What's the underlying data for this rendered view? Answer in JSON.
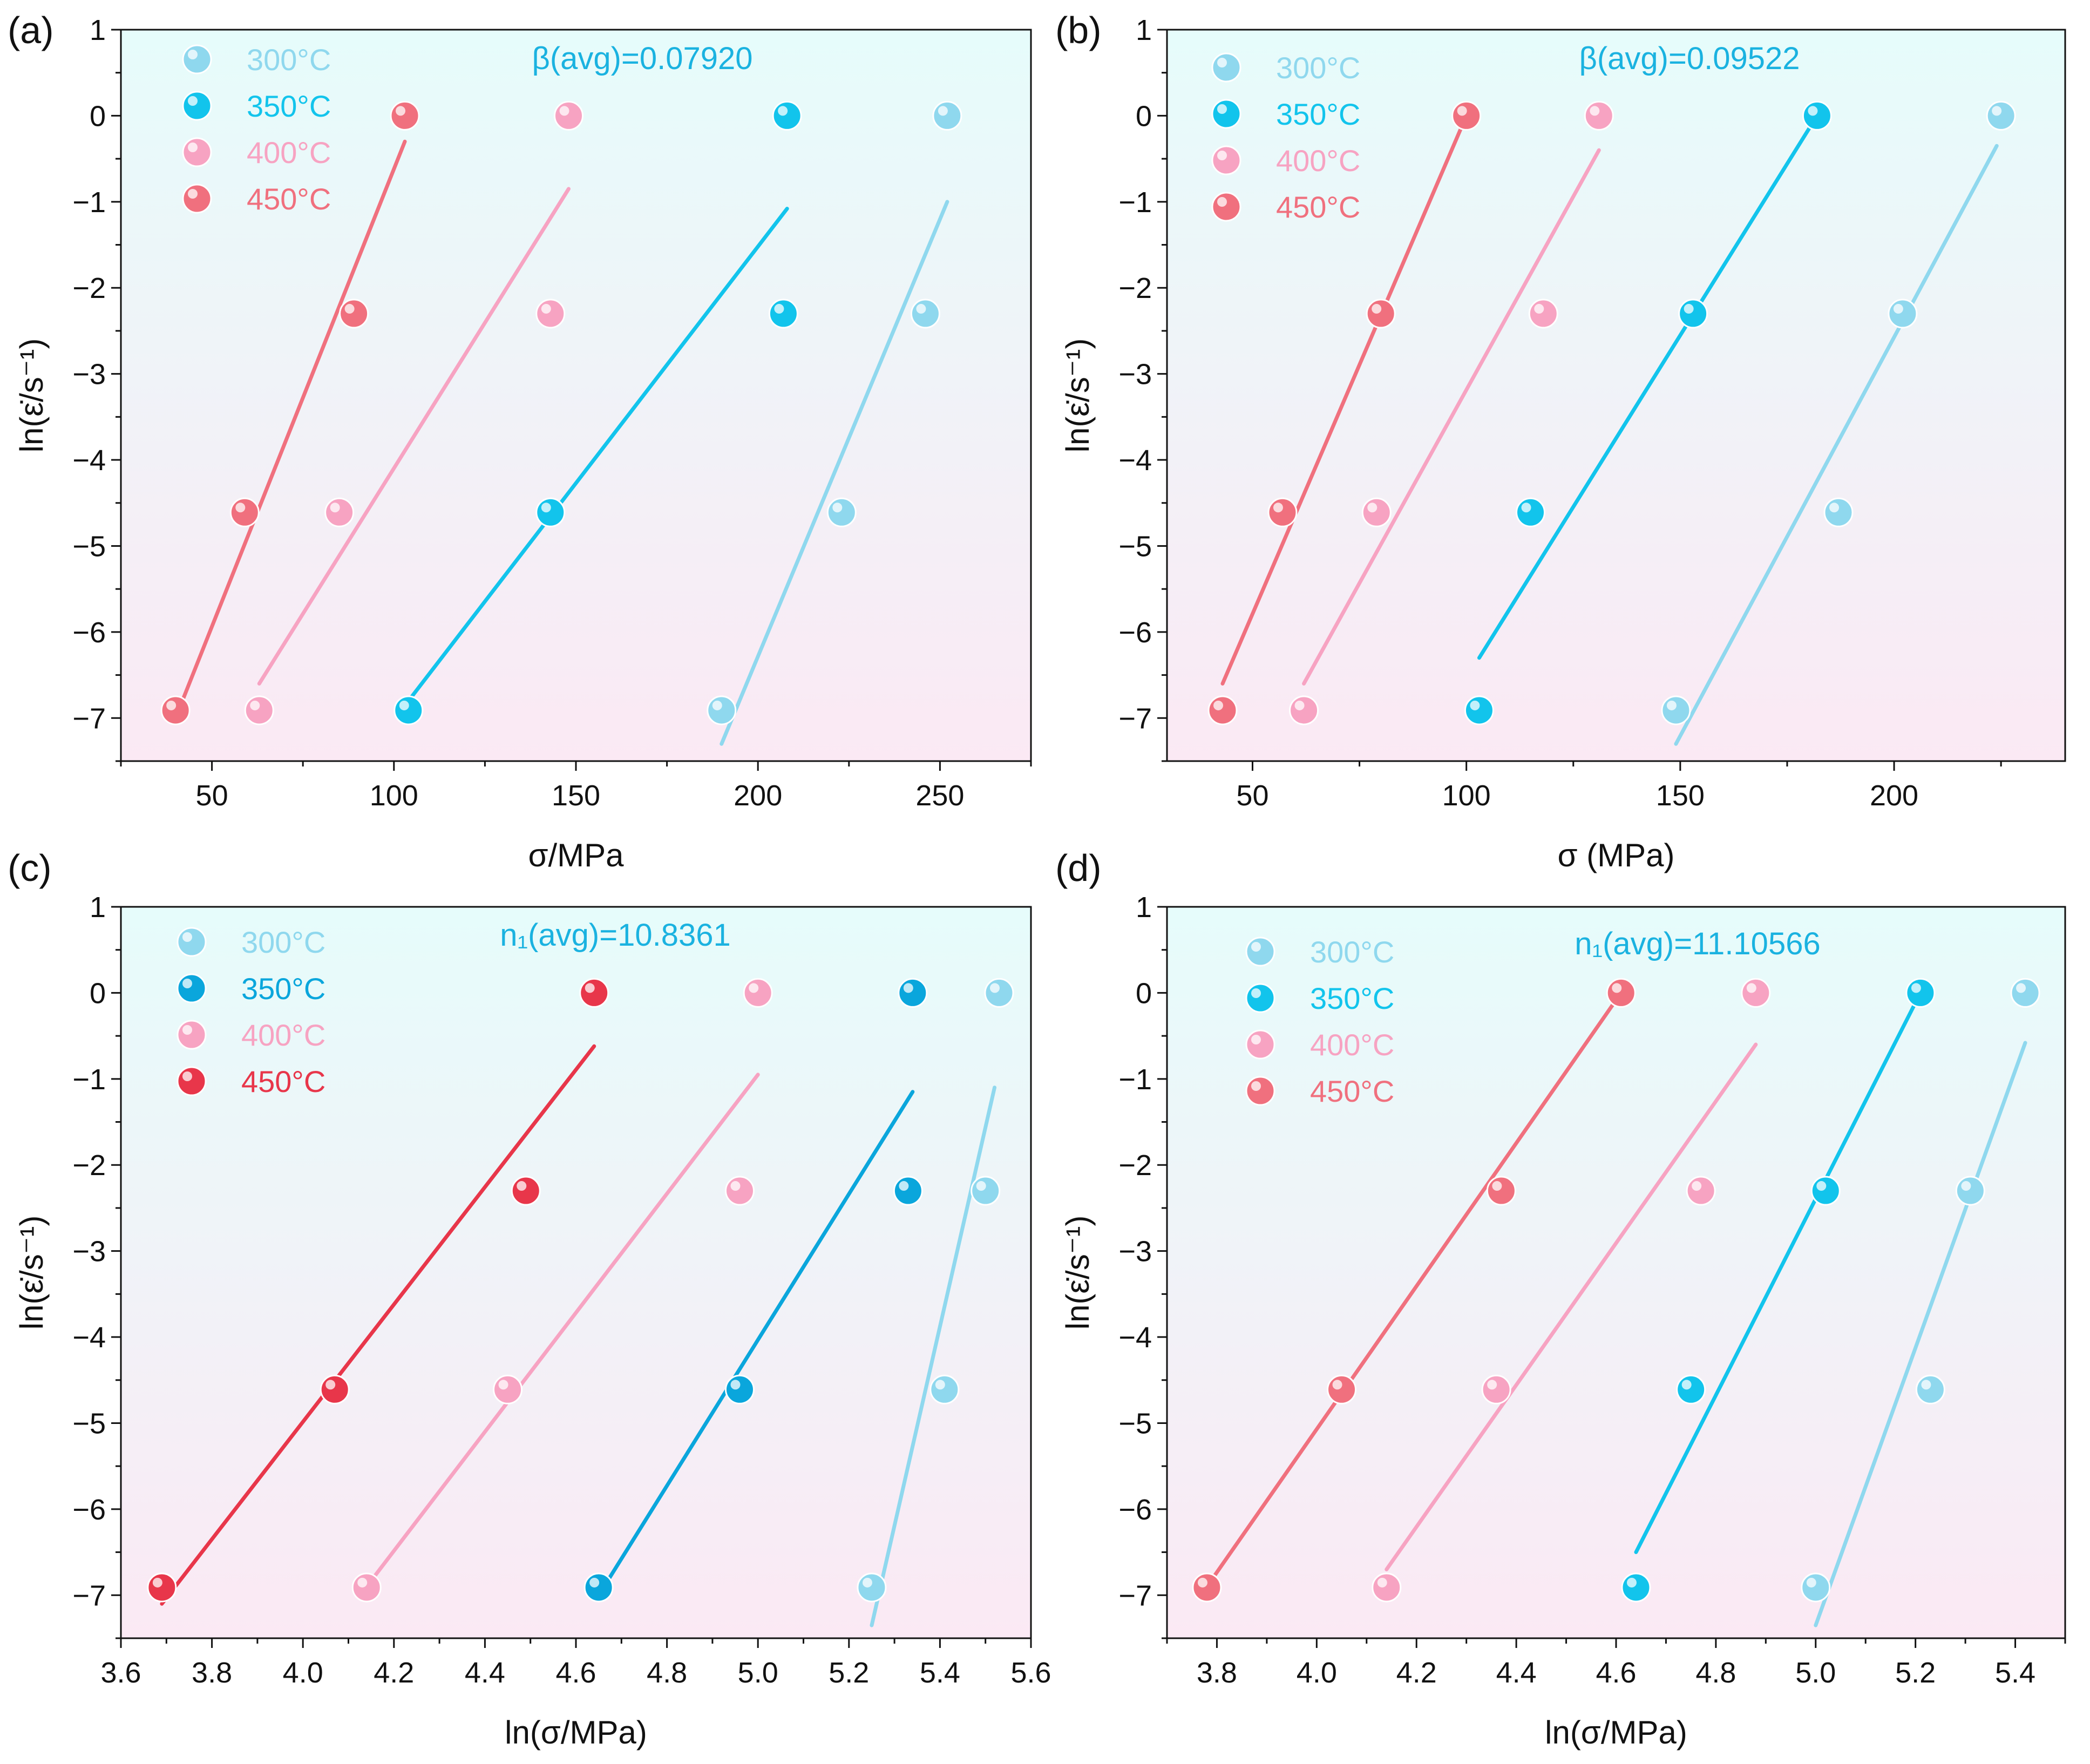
{
  "figure_colors": {
    "bg_top": "#e6fcfb",
    "bg_bottom": "#fbe9f4"
  },
  "chart_data": [
    {
      "panel_label": "(a)",
      "type": "scatter",
      "xlabel": "σ/MPa",
      "ylabel": "ln(ε̇/s⁻¹)",
      "xlim": [
        25,
        275
      ],
      "ylim": [
        -7.5,
        1
      ],
      "xticks": [
        50,
        100,
        150,
        200,
        250
      ],
      "xtick_labels": [
        "50",
        "100",
        "150",
        "200",
        "250"
      ],
      "yticks": [
        1,
        0,
        -1,
        -2,
        -3,
        -4,
        -5,
        -6,
        -7
      ],
      "ytick_labels": [
        "1",
        "0",
        "−1",
        "−2",
        "−3",
        "−4",
        "−5",
        "−6",
        "−7"
      ],
      "annotation": "β(avg)=0.07920",
      "annotation_color": "#1ab2e0",
      "series": [
        {
          "name": "300°C",
          "color": "#8fd8ee",
          "x": [
            190,
            223,
            246,
            252
          ],
          "y": [
            -6.91,
            -4.61,
            -2.3,
            0
          ],
          "fit": [
            [
              190,
              -7.3
            ],
            [
              252,
              -1.0
            ]
          ]
        },
        {
          "name": "350°C",
          "color": "#12c4ec",
          "x": [
            104,
            143,
            207,
            208
          ],
          "y": [
            -6.91,
            -4.61,
            -2.3,
            0
          ],
          "fit": [
            [
              104,
              -6.8
            ],
            [
              208,
              -1.08
            ]
          ]
        },
        {
          "name": "400°C",
          "color": "#f7a3c2",
          "x": [
            63,
            85,
            143,
            148
          ],
          "y": [
            -6.91,
            -4.61,
            -2.3,
            0
          ],
          "fit": [
            [
              63,
              -6.6
            ],
            [
              148,
              -0.85
            ]
          ]
        },
        {
          "name": "450°C",
          "color": "#f0707e",
          "x": [
            40,
            59,
            89,
            103
          ],
          "y": [
            -6.91,
            -4.61,
            -2.3,
            0
          ],
          "fit": [
            [
              40,
              -7.0
            ],
            [
              103,
              -0.3
            ]
          ]
        }
      ]
    },
    {
      "panel_label": "(b)",
      "type": "scatter",
      "xlabel": "σ (MPa)",
      "ylabel": "ln(ε̇/s⁻¹)",
      "xlim": [
        30,
        240
      ],
      "ylim": [
        -7.5,
        1
      ],
      "xticks": [
        50,
        100,
        150,
        200
      ],
      "xtick_labels": [
        "50",
        "100",
        "150",
        "200"
      ],
      "yticks": [
        1,
        0,
        -1,
        -2,
        -3,
        -4,
        -5,
        -6,
        -7
      ],
      "ytick_labels": [
        "1",
        "0",
        "−1",
        "−2",
        "−3",
        "−4",
        "−5",
        "−6",
        "−7"
      ],
      "annotation": "β(avg)=0.09522",
      "annotation_color": "#1ab2e0",
      "series": [
        {
          "name": "300°C",
          "color": "#8fd8ee",
          "x": [
            149,
            187,
            202,
            225
          ],
          "y": [
            -6.91,
            -4.61,
            -2.3,
            0
          ],
          "fit": [
            [
              149,
              -7.3
            ],
            [
              224,
              -0.35
            ]
          ]
        },
        {
          "name": "350°C",
          "color": "#12c4ec",
          "x": [
            103,
            115,
            153,
            182
          ],
          "y": [
            -6.91,
            -4.61,
            -2.3,
            0
          ],
          "fit": [
            [
              103,
              -6.3
            ],
            [
              182,
              0.0
            ]
          ]
        },
        {
          "name": "400°C",
          "color": "#f7a3c2",
          "x": [
            62,
            79,
            118,
            131
          ],
          "y": [
            -6.91,
            -4.61,
            -2.3,
            0
          ],
          "fit": [
            [
              62,
              -6.6
            ],
            [
              131,
              -0.4
            ]
          ]
        },
        {
          "name": "450°C",
          "color": "#f0707e",
          "x": [
            43,
            57,
            80,
            100
          ],
          "y": [
            -6.91,
            -4.61,
            -2.3,
            0
          ],
          "fit": [
            [
              43,
              -6.6
            ],
            [
              100,
              0.0
            ]
          ]
        }
      ]
    },
    {
      "panel_label": "(c)",
      "type": "scatter",
      "xlabel": "ln(σ/MPa)",
      "ylabel": "ln(ε̇/s⁻¹)",
      "xlim": [
        3.6,
        5.6
      ],
      "ylim": [
        -7.5,
        1
      ],
      "xticks": [
        3.6,
        3.8,
        4.0,
        4.2,
        4.4,
        4.6,
        4.8,
        5.0,
        5.2,
        5.4,
        5.6
      ],
      "xtick_labels": [
        "3.6",
        "3.8",
        "4.0",
        "4.2",
        "4.4",
        "4.6",
        "4.8",
        "5.0",
        "5.2",
        "5.4",
        "5.6"
      ],
      "yticks": [
        1,
        0,
        -1,
        -2,
        -3,
        -4,
        -5,
        -6,
        -7
      ],
      "ytick_labels": [
        "1",
        "0",
        "−1",
        "−2",
        "−3",
        "−4",
        "−5",
        "−6",
        "−7"
      ],
      "annotation": "n₁(avg)=10.8361",
      "annotation_color": "#1ab2e0",
      "series": [
        {
          "name": "300°C",
          "color": "#8fd8ee",
          "x": [
            5.25,
            5.41,
            5.5,
            5.53
          ],
          "y": [
            -6.91,
            -4.61,
            -2.3,
            0
          ],
          "fit": [
            [
              5.25,
              -7.35
            ],
            [
              5.52,
              -1.1
            ]
          ]
        },
        {
          "name": "350°C",
          "color": "#0aa6dc",
          "x": [
            4.65,
            4.96,
            5.33,
            5.34
          ],
          "y": [
            -6.91,
            -4.61,
            -2.3,
            0
          ],
          "fit": [
            [
              4.65,
              -7.0
            ],
            [
              5.34,
              -1.15
            ]
          ]
        },
        {
          "name": "400°C",
          "color": "#f7a3c2",
          "x": [
            4.14,
            4.45,
            4.96,
            5.0
          ],
          "y": [
            -6.91,
            -4.61,
            -2.3,
            0
          ],
          "fit": [
            [
              4.14,
              -6.9
            ],
            [
              5.0,
              -0.95
            ]
          ]
        },
        {
          "name": "450°C",
          "color": "#e8364a",
          "x": [
            3.69,
            4.07,
            4.49,
            4.64
          ],
          "y": [
            -6.91,
            -4.61,
            -2.3,
            0
          ],
          "fit": [
            [
              3.69,
              -7.1
            ],
            [
              4.64,
              -0.62
            ]
          ]
        }
      ]
    },
    {
      "panel_label": "(d)",
      "type": "scatter",
      "xlabel": "ln(σ/MPa)",
      "ylabel": "ln(ε̇/s⁻¹)",
      "xlim": [
        3.7,
        5.5
      ],
      "ylim": [
        -7.5,
        1
      ],
      "xticks": [
        3.8,
        4.0,
        4.2,
        4.4,
        4.6,
        4.8,
        5.0,
        5.2,
        5.4
      ],
      "xtick_labels": [
        "3.8",
        "4.0",
        "4.2",
        "4.4",
        "4.6",
        "4.8",
        "5.0",
        "5.2",
        "5.4"
      ],
      "yticks": [
        1,
        0,
        -1,
        -2,
        -3,
        -4,
        -5,
        -6,
        -7
      ],
      "ytick_labels": [
        "1",
        "0",
        "−1",
        "−2",
        "−3",
        "−4",
        "−5",
        "−6",
        "−7"
      ],
      "annotation": "n₁(avg)=11.10566",
      "annotation_color": "#1ab2e0",
      "series": [
        {
          "name": "300°C",
          "color": "#8fd8ee",
          "x": [
            5.0,
            5.23,
            5.31,
            5.42
          ],
          "y": [
            -6.91,
            -4.61,
            -2.3,
            0
          ],
          "fit": [
            [
              5.0,
              -7.35
            ],
            [
              5.42,
              -0.58
            ]
          ]
        },
        {
          "name": "350°C",
          "color": "#12c4ec",
          "x": [
            4.64,
            4.75,
            5.02,
            5.21
          ],
          "y": [
            -6.91,
            -4.61,
            -2.3,
            0
          ],
          "fit": [
            [
              4.64,
              -6.5
            ],
            [
              5.21,
              0.0
            ]
          ]
        },
        {
          "name": "400°C",
          "color": "#f7a3c2",
          "x": [
            4.14,
            4.36,
            4.77,
            4.88
          ],
          "y": [
            -6.91,
            -4.61,
            -2.3,
            0
          ],
          "fit": [
            [
              4.14,
              -6.7
            ],
            [
              4.88,
              -0.6
            ]
          ]
        },
        {
          "name": "450°C",
          "color": "#f0707e",
          "x": [
            3.78,
            4.05,
            4.37,
            4.61
          ],
          "y": [
            -6.91,
            -4.61,
            -2.3,
            0
          ],
          "fit": [
            [
              3.78,
              -6.9
            ],
            [
              4.61,
              0.0
            ]
          ]
        }
      ]
    }
  ]
}
